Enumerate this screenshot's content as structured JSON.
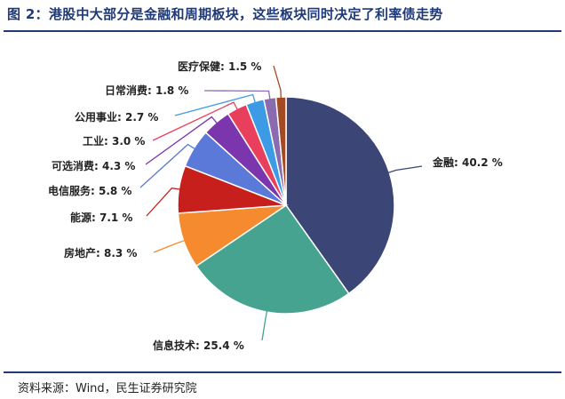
{
  "header": {
    "title": "图 2：港股中大部分是金融和周期板块，这些板块同时决定了利率债走势"
  },
  "footer": {
    "source": "资料来源：Wind，民生证券研究院"
  },
  "chart_data": {
    "type": "pie",
    "title": "",
    "slices": [
      {
        "label": "金融",
        "value": 40.2,
        "display": "金融: 40.2 %",
        "color": "#3b4677"
      },
      {
        "label": "信息技术",
        "value": 25.4,
        "display": "信息技术: 25.4 %",
        "color": "#45a390"
      },
      {
        "label": "房地产",
        "value": 8.3,
        "display": "房地产: 8.3 %",
        "color": "#f58a2f"
      },
      {
        "label": "能源",
        "value": 7.1,
        "display": "能源: 7.1 %",
        "color": "#c61f1c"
      },
      {
        "label": "电信服务",
        "value": 5.8,
        "display": "电信服务: 5.8 %",
        "color": "#5a79d8"
      },
      {
        "label": "可选消费",
        "value": 4.3,
        "display": "可选消费: 4.3 %",
        "color": "#7b35ad"
      },
      {
        "label": "工业",
        "value": 3.0,
        "display": "工业: 3.0 %",
        "color": "#e8405c"
      },
      {
        "label": "公用事业",
        "value": 2.7,
        "display": "公用事业: 2.7 %",
        "color": "#3d9be6"
      },
      {
        "label": "日常消费",
        "value": 1.8,
        "display": "日常消费: 1.8 %",
        "color": "#8a6bb0"
      },
      {
        "label": "医疗保健",
        "value": 1.5,
        "display": "医疗保健: 1.5 %",
        "color": "#a44a22"
      }
    ],
    "start_angle_deg": 0,
    "direction": "clockwise",
    "legend": "none",
    "labels": "outside with leader lines"
  }
}
